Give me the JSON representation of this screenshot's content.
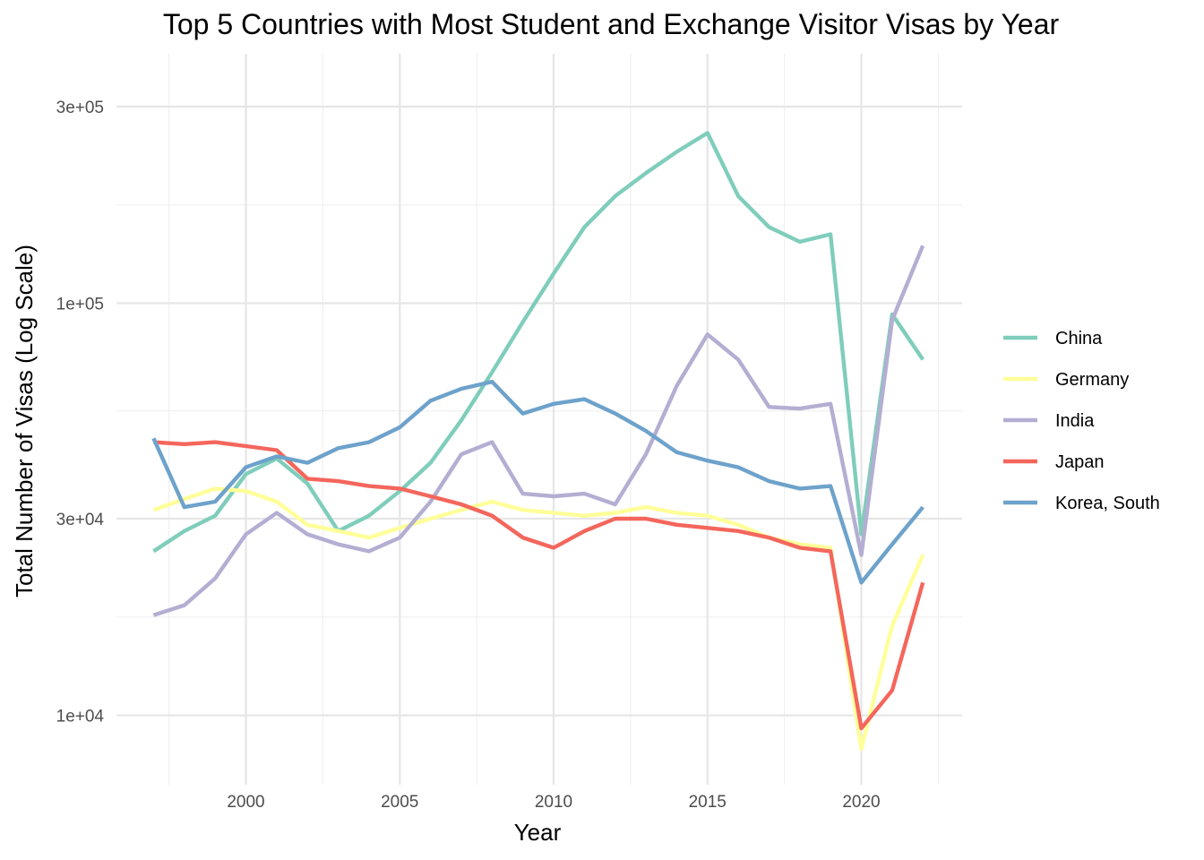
{
  "chart_data": {
    "type": "line",
    "title": "Top 5 Countries with Most Student and Exchange Visitor Visas by Year",
    "xlabel": "Year",
    "ylabel": "Total Number of Visas (Log Scale)",
    "y_scale": "log10",
    "xlim": [
      1996.7,
      2022.8
    ],
    "ylim": [
      8300,
      340000
    ],
    "x_ticks": [
      2000,
      2005,
      2010,
      2015,
      2020
    ],
    "x_tick_labels": [
      "2000",
      "2005",
      "2010",
      "2015",
      "2020"
    ],
    "y_ticks": [
      10000,
      30000,
      100000,
      300000
    ],
    "y_tick_labels": [
      "1e+04",
      "3e+04",
      "1e+05",
      "3e+05"
    ],
    "grid": true,
    "legend_position": "right",
    "x": [
      1997,
      1998,
      1999,
      2000,
      2001,
      2002,
      2003,
      2004,
      2005,
      2006,
      2007,
      2008,
      2009,
      2010,
      2011,
      2012,
      2013,
      2014,
      2015,
      2016,
      2017,
      2018,
      2019,
      2020,
      2021,
      2022
    ],
    "series": [
      {
        "name": "China",
        "color": "#7fcdbb",
        "values": [
          25000,
          28000,
          30500,
          38500,
          42000,
          36500,
          28000,
          30500,
          35000,
          41000,
          52000,
          68000,
          90000,
          118000,
          153000,
          182000,
          207000,
          233000,
          259000,
          182000,
          153000,
          141000,
          147000,
          27500,
          94000,
          73000
        ]
      },
      {
        "name": "Germany",
        "color": "#ffff99",
        "values": [
          31500,
          33500,
          35500,
          35000,
          33000,
          29000,
          28000,
          27000,
          28500,
          30000,
          31500,
          33000,
          31500,
          31000,
          30500,
          31000,
          32000,
          31000,
          30500,
          29000,
          27000,
          26000,
          25500,
          8300,
          16500,
          24500
        ]
      },
      {
        "name": "India",
        "color": "#b3aed2",
        "values": [
          17500,
          18500,
          21500,
          27500,
          31000,
          27500,
          26000,
          25000,
          27000,
          33000,
          43000,
          46000,
          34500,
          34000,
          34500,
          32500,
          43000,
          63000,
          84000,
          73000,
          56000,
          55500,
          57000,
          24500,
          91000,
          138000
        ]
      },
      {
        "name": "Japan",
        "color": "#f4665c",
        "values": [
          46000,
          45500,
          46000,
          45000,
          44000,
          37500,
          37000,
          36000,
          35500,
          34000,
          32500,
          30500,
          27000,
          25500,
          28000,
          30000,
          30000,
          29000,
          28500,
          28000,
          27000,
          25500,
          25000,
          9300,
          11500,
          21000
        ]
      },
      {
        "name": "Korea, South",
        "color": "#6da2cb",
        "values": [
          47000,
          32000,
          33000,
          40000,
          42500,
          41000,
          44500,
          46000,
          50000,
          58000,
          62000,
          64500,
          54000,
          57000,
          58500,
          54000,
          49000,
          43500,
          41500,
          40000,
          37000,
          35500,
          36000,
          21000,
          26000,
          32000
        ]
      }
    ]
  }
}
